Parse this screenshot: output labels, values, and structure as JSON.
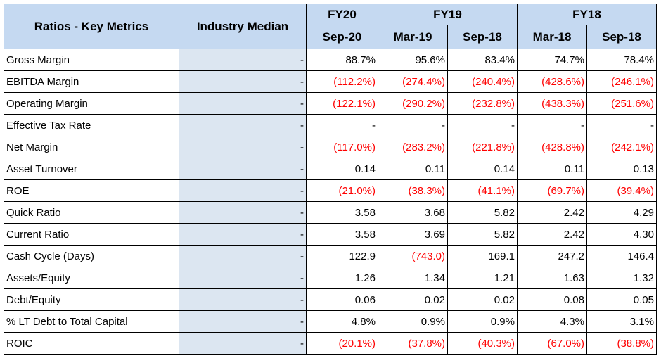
{
  "header": {
    "metric_col": "Ratios - Key Metrics",
    "industry_col": "Industry Median",
    "fiscal_years": [
      "FY20",
      "FY19",
      "FY18"
    ],
    "periods": [
      "Sep-20",
      "Mar-19",
      "Sep-18",
      "Mar-18",
      "Sep-18"
    ]
  },
  "rows": [
    {
      "label": "Gross Margin",
      "median": "-",
      "values": [
        "88.7%",
        "95.6%",
        "83.4%",
        "74.7%",
        "78.4%"
      ]
    },
    {
      "label": "EBITDA Margin",
      "median": "-",
      "values": [
        "(112.2%)",
        "(274.4%)",
        "(240.4%)",
        "(428.6%)",
        "(246.1%)"
      ]
    },
    {
      "label": "Operating Margin",
      "median": "-",
      "values": [
        "(122.1%)",
        "(290.2%)",
        "(232.8%)",
        "(438.3%)",
        "(251.6%)"
      ]
    },
    {
      "label": "Effective Tax Rate",
      "median": "-",
      "values": [
        "-",
        "-",
        "-",
        "-",
        "-"
      ]
    },
    {
      "label": "Net Margin",
      "median": "-",
      "values": [
        "(117.0%)",
        "(283.2%)",
        "(221.8%)",
        "(428.8%)",
        "(242.1%)"
      ]
    },
    {
      "label": "Asset Turnover",
      "median": "-",
      "values": [
        "0.14",
        "0.11",
        "0.14",
        "0.11",
        "0.13"
      ]
    },
    {
      "label": "ROE",
      "median": "-",
      "values": [
        "(21.0%)",
        "(38.3%)",
        "(41.1%)",
        "(69.7%)",
        "(39.4%)"
      ]
    },
    {
      "label": "Quick Ratio",
      "median": "-",
      "values": [
        "3.58",
        "3.68",
        "5.82",
        "2.42",
        "4.29"
      ]
    },
    {
      "label": "Current Ratio",
      "median": "-",
      "values": [
        "3.58",
        "3.69",
        "5.82",
        "2.42",
        "4.30"
      ]
    },
    {
      "label": "Cash Cycle (Days)",
      "median": "-",
      "values": [
        "122.9",
        "(743.0)",
        "169.1",
        "247.2",
        "146.4"
      ]
    },
    {
      "label": "Assets/Equity",
      "median": "-",
      "values": [
        "1.26",
        "1.34",
        "1.21",
        "1.63",
        "1.32"
      ]
    },
    {
      "label": "Debt/Equity",
      "median": "-",
      "values": [
        "0.06",
        "0.02",
        "0.02",
        "0.08",
        "0.05"
      ]
    },
    {
      "label": "% LT Debt to Total Capital",
      "median": "-",
      "values": [
        "4.8%",
        "0.9%",
        "0.9%",
        "4.3%",
        "3.1%"
      ]
    },
    {
      "label": "ROIC",
      "median": "-",
      "values": [
        "(20.1%)",
        "(37.8%)",
        "(40.3%)",
        "(67.0%)",
        "(38.8%)"
      ]
    }
  ],
  "colors": {
    "header_bg": "#c5d9f1",
    "median_bg": "#dce6f1",
    "negative": "#ff0000"
  }
}
